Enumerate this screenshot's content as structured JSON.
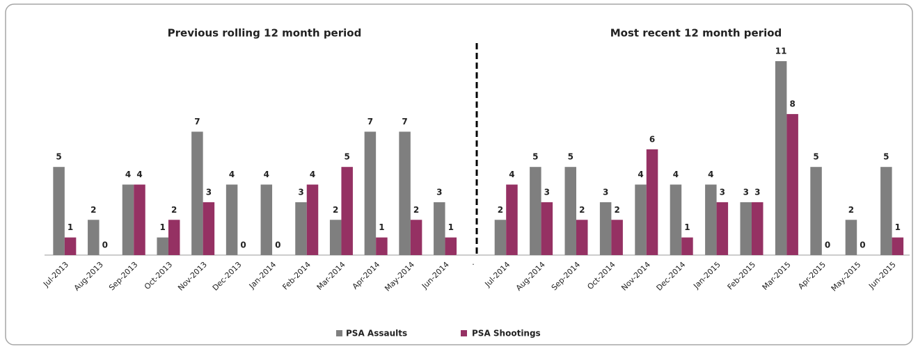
{
  "chart_data": [
    {
      "type": "bar",
      "title": "Previous rolling 12 month period",
      "categories": [
        "Jul-2013",
        "Aug-2013",
        "Sep-2013",
        "Oct-2013",
        "Nov-2013",
        "Dec-2013",
        "Jan-2014",
        "Feb-2014",
        "Mar-2014",
        "Apr-2014",
        "May-2014",
        "Jun-2014"
      ],
      "series": [
        {
          "name": "PSA Assaults",
          "color": "#7f7f7f",
          "values": [
            5,
            2,
            4,
            1,
            7,
            4,
            4,
            3,
            2,
            7,
            7,
            3
          ]
        },
        {
          "name": "PSA Shootings",
          "color": "#953163",
          "values": [
            1,
            0,
            4,
            2,
            3,
            0,
            0,
            4,
            5,
            1,
            2,
            1
          ]
        }
      ],
      "ylim": [
        0,
        11
      ]
    },
    {
      "type": "bar",
      "title": "Most recent 12 month period",
      "categories": [
        "Jul-2014",
        "Aug-2014",
        "Sep-2014",
        "Oct-2014",
        "Nov-2014",
        "Dec-2014",
        "Jan-2015",
        "Feb-2015",
        "Mar-2015",
        "Apr-2015",
        "May-2015",
        "Jun-2015"
      ],
      "series": [
        {
          "color": "#7f7f7f",
          "values": [
            2,
            5,
            5,
            3,
            4,
            4,
            4,
            3,
            11,
            5,
            2,
            5
          ]
        },
        {
          "color": "#953163",
          "values": [
            4,
            3,
            2,
            2,
            6,
            1,
            3,
            3,
            8,
            0,
            0,
            1
          ]
        }
      ],
      "ylim": [
        0,
        11
      ]
    }
  ]
}
